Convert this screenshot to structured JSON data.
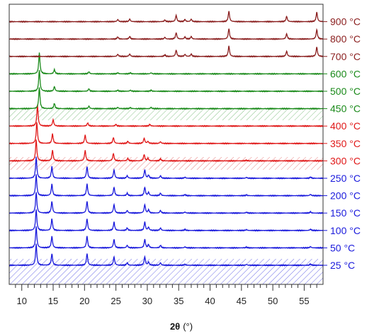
{
  "chart_data": {
    "type": "line",
    "title": "",
    "xlabel": "2θ",
    "xunit": "(°)",
    "ylabel": "",
    "xlim": [
      8,
      58
    ],
    "x_major_ticks": [
      10,
      15,
      20,
      25,
      30,
      35,
      40,
      45,
      50,
      55
    ],
    "x_tick_labels": [
      "10",
      "15",
      "20",
      "25",
      "30",
      "35",
      "40",
      "45",
      "50",
      "55"
    ],
    "colors": {
      "low": "#1a1adc",
      "mid": "#e01818",
      "high": "#1a8a1a",
      "top": "#8a1e1e"
    },
    "series": [
      {
        "name": "25 °C",
        "group": "low",
        "peaks": [
          [
            12.3,
            1.0
          ],
          [
            14.8,
            0.55
          ],
          [
            20.4,
            0.55
          ],
          [
            24.7,
            0.4
          ],
          [
            26.8,
            0.12
          ],
          [
            29.6,
            0.4
          ],
          [
            30.2,
            0.15
          ],
          [
            32.1,
            0.12
          ],
          [
            36.0,
            0.05
          ],
          [
            45.8,
            0.04
          ],
          [
            56.0,
            0.06
          ]
        ]
      },
      {
        "name": "50 °C",
        "group": "low",
        "peaks": [
          [
            12.3,
            1.0
          ],
          [
            14.8,
            0.55
          ],
          [
            20.4,
            0.55
          ],
          [
            24.7,
            0.4
          ],
          [
            26.8,
            0.12
          ],
          [
            29.6,
            0.4
          ],
          [
            30.2,
            0.15
          ],
          [
            32.1,
            0.12
          ],
          [
            36.0,
            0.05
          ],
          [
            45.8,
            0.04
          ],
          [
            56.0,
            0.06
          ]
        ]
      },
      {
        "name": "100 °C",
        "group": "low",
        "peaks": [
          [
            12.3,
            1.0
          ],
          [
            14.8,
            0.55
          ],
          [
            20.4,
            0.55
          ],
          [
            24.7,
            0.4
          ],
          [
            26.8,
            0.12
          ],
          [
            29.6,
            0.4
          ],
          [
            30.2,
            0.15
          ],
          [
            32.1,
            0.12
          ],
          [
            36.0,
            0.05
          ],
          [
            45.8,
            0.04
          ],
          [
            56.0,
            0.06
          ]
        ]
      },
      {
        "name": "150 °C",
        "group": "low",
        "peaks": [
          [
            12.3,
            1.0
          ],
          [
            14.8,
            0.55
          ],
          [
            20.4,
            0.55
          ],
          [
            24.7,
            0.4
          ],
          [
            26.8,
            0.12
          ],
          [
            29.6,
            0.4
          ],
          [
            30.2,
            0.15
          ],
          [
            32.1,
            0.12
          ],
          [
            36.0,
            0.05
          ],
          [
            45.8,
            0.04
          ],
          [
            56.0,
            0.06
          ]
        ]
      },
      {
        "name": "200 °C",
        "group": "low",
        "peaks": [
          [
            12.3,
            1.0
          ],
          [
            14.8,
            0.55
          ],
          [
            20.4,
            0.55
          ],
          [
            24.7,
            0.4
          ],
          [
            26.8,
            0.12
          ],
          [
            29.6,
            0.4
          ],
          [
            30.2,
            0.15
          ],
          [
            32.1,
            0.12
          ],
          [
            36.0,
            0.05
          ],
          [
            45.8,
            0.04
          ],
          [
            56.0,
            0.06
          ]
        ]
      },
      {
        "name": "250 °C",
        "group": "low",
        "peaks": [
          [
            12.3,
            1.0
          ],
          [
            14.8,
            0.55
          ],
          [
            20.4,
            0.55
          ],
          [
            24.7,
            0.4
          ],
          [
            26.8,
            0.12
          ],
          [
            29.6,
            0.4
          ],
          [
            30.2,
            0.15
          ],
          [
            32.1,
            0.12
          ],
          [
            36.0,
            0.05
          ],
          [
            45.8,
            0.04
          ],
          [
            56.0,
            0.06
          ]
        ]
      },
      {
        "name": "300 °C",
        "group": "mid",
        "peaks": [
          [
            12.3,
            1.0
          ],
          [
            14.9,
            0.5
          ],
          [
            20.1,
            0.5
          ],
          [
            24.6,
            0.35
          ],
          [
            26.9,
            0.12
          ],
          [
            29.5,
            0.3
          ],
          [
            30.1,
            0.12
          ],
          [
            32.1,
            0.1
          ],
          [
            45.8,
            0.03
          ]
        ]
      },
      {
        "name": "350 °C",
        "group": "mid",
        "peaks": [
          [
            12.4,
            1.0
          ],
          [
            14.9,
            0.45
          ],
          [
            20.1,
            0.4
          ],
          [
            24.6,
            0.28
          ],
          [
            26.9,
            0.1
          ],
          [
            29.5,
            0.25
          ],
          [
            30.1,
            0.1
          ],
          [
            32.1,
            0.08
          ]
        ]
      },
      {
        "name": "400 °C",
        "group": "mid",
        "peaks": [
          [
            12.5,
            1.0
          ],
          [
            15.0,
            0.3
          ],
          [
            20.5,
            0.15
          ],
          [
            25.0,
            0.08
          ],
          [
            30.4,
            0.08
          ]
        ]
      },
      {
        "name": "450 °C",
        "group": "high",
        "peaks": [
          [
            12.8,
            1.0
          ],
          [
            15.2,
            0.25
          ],
          [
            20.7,
            0.12
          ],
          [
            25.3,
            0.06
          ],
          [
            27.3,
            0.05
          ],
          [
            30.6,
            0.06
          ]
        ]
      },
      {
        "name": "500 °C",
        "group": "high",
        "peaks": [
          [
            12.8,
            1.0
          ],
          [
            15.2,
            0.22
          ],
          [
            20.7,
            0.12
          ],
          [
            25.3,
            0.05
          ],
          [
            27.3,
            0.05
          ],
          [
            30.6,
            0.05
          ]
        ]
      },
      {
        "name": "600 °C",
        "group": "high",
        "peaks": [
          [
            12.8,
            1.0
          ],
          [
            15.2,
            0.2
          ],
          [
            20.7,
            0.1
          ],
          [
            25.3,
            0.05
          ],
          [
            27.3,
            0.05
          ],
          [
            30.6,
            0.05
          ]
        ]
      },
      {
        "name": "700 °C",
        "group": "top",
        "peaks": [
          [
            25.3,
            0.1
          ],
          [
            27.2,
            0.12
          ],
          [
            32.8,
            0.08
          ],
          [
            34.6,
            0.3
          ],
          [
            36.0,
            0.1
          ],
          [
            37.0,
            0.12
          ],
          [
            43.0,
            0.5
          ],
          [
            52.2,
            0.25
          ],
          [
            57.0,
            0.45
          ]
        ]
      },
      {
        "name": "800 °C",
        "group": "top",
        "peaks": [
          [
            25.3,
            0.1
          ],
          [
            27.2,
            0.12
          ],
          [
            32.8,
            0.08
          ],
          [
            34.6,
            0.3
          ],
          [
            36.0,
            0.1
          ],
          [
            37.0,
            0.12
          ],
          [
            43.0,
            0.5
          ],
          [
            52.2,
            0.25
          ],
          [
            57.0,
            0.45
          ]
        ]
      },
      {
        "name": "900 °C",
        "group": "top",
        "peaks": [
          [
            25.3,
            0.1
          ],
          [
            27.2,
            0.12
          ],
          [
            32.8,
            0.08
          ],
          [
            34.6,
            0.3
          ],
          [
            36.0,
            0.1
          ],
          [
            37.0,
            0.12
          ],
          [
            43.0,
            0.5
          ],
          [
            52.2,
            0.25
          ],
          [
            57.0,
            0.45
          ]
        ]
      }
    ]
  }
}
